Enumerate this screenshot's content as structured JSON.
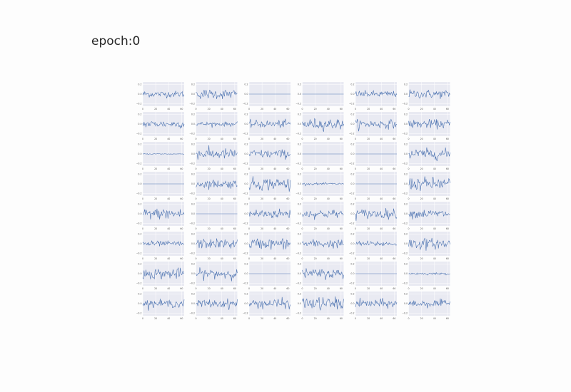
{
  "title": "epoch:0",
  "colors": {
    "panel_bg": "#e9eaf2",
    "line": "#4c72b0",
    "grid": "#ffffff"
  },
  "chart_data": {
    "type": "line",
    "layout": {
      "rows": 8,
      "cols": 6
    },
    "x_range": [
      0,
      64
    ],
    "y_range": [
      -0.25,
      0.25
    ],
    "x_ticks": [
      "0",
      "20",
      "40",
      "60"
    ],
    "y_ticks": [
      "0.2",
      "0.0",
      "−0.2"
    ],
    "grid": true,
    "panel_kind": [
      [
        "n",
        "n",
        "f",
        "f",
        "n",
        "n"
      ],
      [
        "n",
        "n",
        "n",
        "n",
        "n",
        "n"
      ],
      [
        "s",
        "n",
        "n",
        "f",
        "f",
        "n"
      ],
      [
        "f",
        "n",
        "n",
        "s",
        "f",
        "n"
      ],
      [
        "n",
        "f",
        "n",
        "n",
        "n",
        "n"
      ],
      [
        "n",
        "n",
        "n",
        "n",
        "n",
        "n"
      ],
      [
        "n",
        "n",
        "f",
        "n",
        "f",
        "s"
      ],
      [
        "n",
        "n",
        "n",
        "n",
        "n",
        "n"
      ]
    ],
    "amplitude": [
      [
        0.06,
        0.09,
        0.0,
        0.0,
        0.06,
        0.08
      ],
      [
        0.07,
        0.04,
        0.07,
        0.1,
        0.08,
        0.08
      ],
      [
        0.01,
        0.1,
        0.08,
        0.0,
        0.0,
        0.1
      ],
      [
        0.0,
        0.08,
        0.12,
        0.02,
        0.0,
        0.12
      ],
      [
        0.1,
        0.0,
        0.09,
        0.08,
        0.09,
        0.08
      ],
      [
        0.05,
        0.09,
        0.1,
        0.08,
        0.05,
        0.1
      ],
      [
        0.1,
        0.09,
        0.0,
        0.09,
        0.0,
        0.02
      ],
      [
        0.07,
        0.08,
        0.09,
        0.12,
        0.08,
        0.07
      ]
    ]
  }
}
